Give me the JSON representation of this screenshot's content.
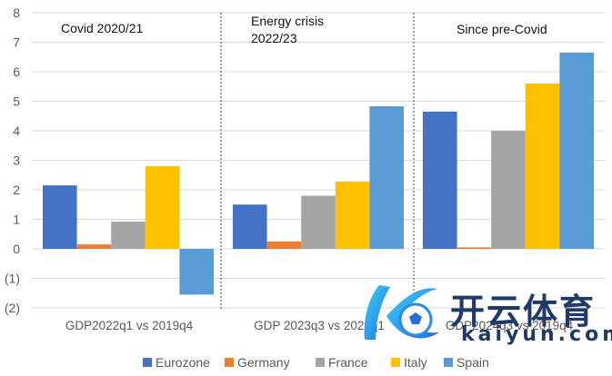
{
  "chart_data": {
    "type": "bar",
    "title": "",
    "xlabel": "",
    "ylabel": "",
    "ylim": [
      -2,
      8
    ],
    "yticks": [
      8,
      7,
      6,
      5,
      4,
      3,
      2,
      1,
      0,
      -1,
      -2
    ],
    "ytick_labels": [
      "8",
      "7",
      "6",
      "5",
      "4",
      "3",
      "2",
      "1",
      "0",
      "(1)",
      "(2)"
    ],
    "grid": true,
    "categories": [
      "GDP2022q1 vs 2019q4",
      "GDP 2023q3 vs 2022q1",
      "GDP2024q3 vs 2019q4"
    ],
    "annotations": [
      "Covid 2020/21",
      "Energy crisis",
      "2022/23",
      "Since pre-Covid"
    ],
    "series": [
      {
        "name": "Eurozone",
        "color": "#4472C4",
        "values": [
          2.15,
          1.5,
          4.65
        ]
      },
      {
        "name": "Germany",
        "color": "#ED7D31",
        "values": [
          0.15,
          0.25,
          0.05
        ]
      },
      {
        "name": "France",
        "color": "#A5A5A5",
        "values": [
          0.92,
          1.8,
          4.0
        ]
      },
      {
        "name": "Italy",
        "color": "#FFC000",
        "values": [
          2.8,
          2.28,
          5.6
        ]
      },
      {
        "name": "Spain",
        "color": "#5B9BD5",
        "values": [
          -1.55,
          4.83,
          6.65
        ]
      }
    ],
    "legend_position": "bottom"
  },
  "watermark": {
    "text_cn": "开云体育",
    "text_en": "kaiyun.com"
  }
}
